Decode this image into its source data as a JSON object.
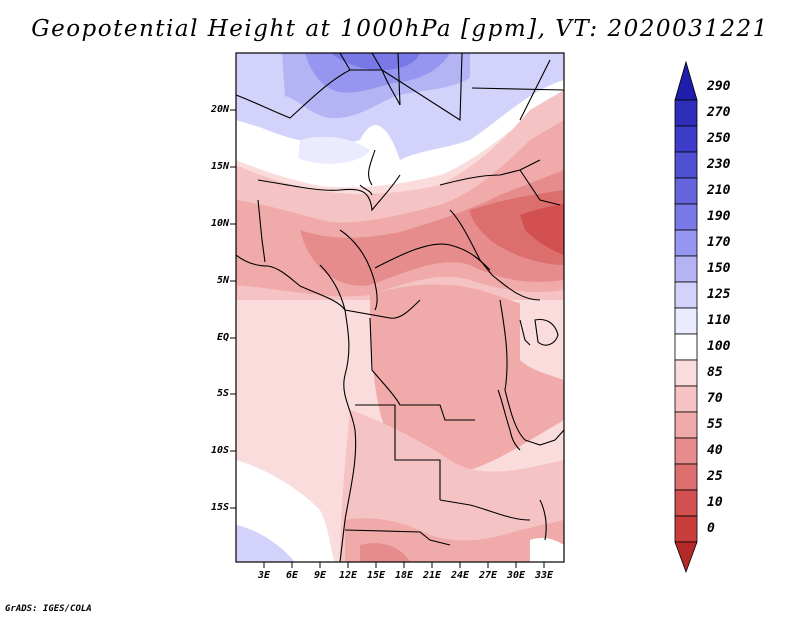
{
  "title": "Geopotential Height at 1000hPa [gpm], VT: 2020031221",
  "credit": "GrADS: IGES/COLA",
  "map": {
    "variable": "Geopotential Height",
    "level": "1000hPa",
    "units": "gpm",
    "valid_time": "2020031221",
    "lat_ticks": [
      "20N",
      "15N",
      "10N",
      "5N",
      "EQ",
      "5S",
      "10S",
      "15S"
    ],
    "lon_ticks": [
      "3E",
      "6E",
      "9E",
      "12E",
      "15E",
      "18E",
      "21E",
      "24E",
      "27E",
      "30E",
      "33E"
    ]
  },
  "colorbar": {
    "levels": [
      "290",
      "270",
      "250",
      "230",
      "210",
      "190",
      "170",
      "150",
      "125",
      "110",
      "100",
      "85",
      "70",
      "55",
      "40",
      "25",
      "10",
      "0"
    ],
    "colors": [
      "#1e1eaa",
      "#2d2db9",
      "#3c3cc8",
      "#5050d2",
      "#6464dc",
      "#7878e6",
      "#9696f0",
      "#b4b4f5",
      "#d2d2fa",
      "#ebebff",
      "#ffffff",
      "#fadcdc",
      "#f5c3c3",
      "#f0aaaa",
      "#e68c8c",
      "#dc6e6e",
      "#d25050",
      "#c83c3c",
      "#b42828"
    ]
  }
}
